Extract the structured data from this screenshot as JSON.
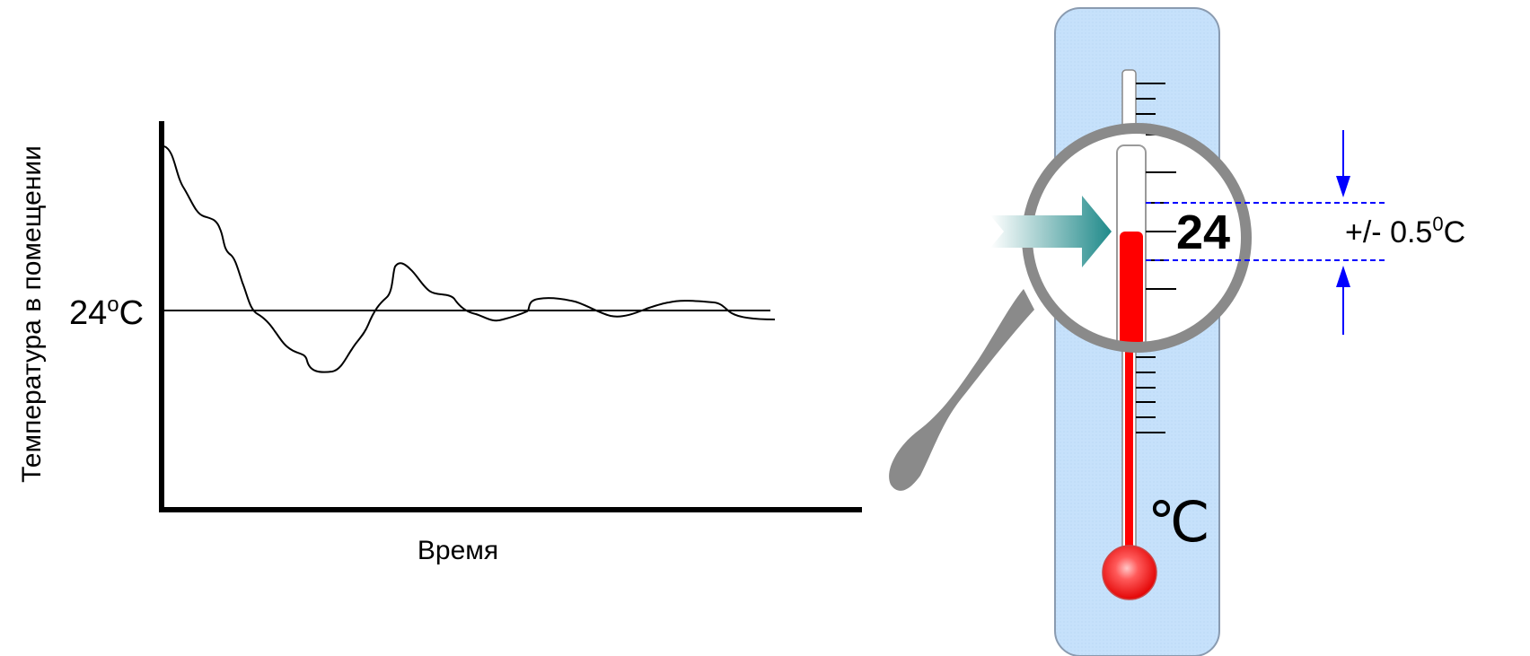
{
  "graph": {
    "y_label": "Температура в помещении",
    "x_label": "Время",
    "setpoint_value": "24",
    "setpoint_unit_sup": "o",
    "setpoint_unit": "C"
  },
  "thermometer": {
    "unit_label": "℃",
    "magnified_value": "24",
    "tolerance_prefix": "+/- 0.5",
    "tolerance_sup": "0",
    "tolerance_unit": "C"
  },
  "colors": {
    "axis": "#000000",
    "mercury": "#ff0000",
    "thermometer_panel": "#c9e3fb",
    "magnifier": "#8a8a8a",
    "arrow_teal": "#2a8f8f",
    "tolerance_blue": "#0000ff"
  }
}
